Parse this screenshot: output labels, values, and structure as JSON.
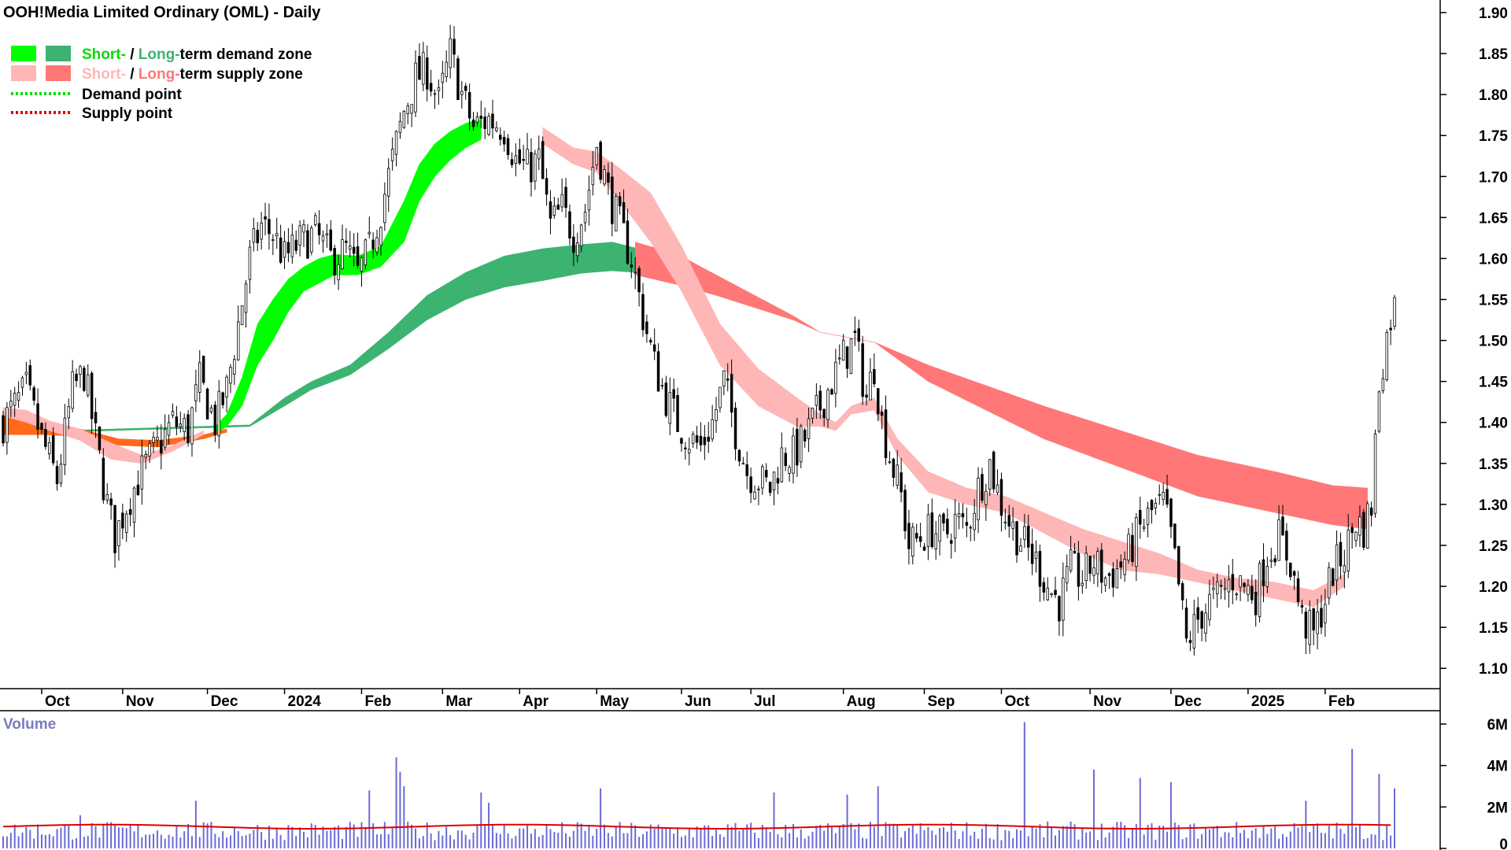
{
  "chart_data": {
    "type": "candlestick",
    "title": "OOH!Media Limited Ordinary (OML) - Daily",
    "legend": {
      "placement": "top-left",
      "demand_short": "Short-",
      "demand_sep": " / ",
      "demand_long": "Long-",
      "demand_rest": "term demand zone",
      "supply_short": "Short-",
      "supply_sep": " / ",
      "supply_long": "Long-",
      "supply_rest": "term supply zone",
      "demand_point": "Demand point",
      "supply_point": "Supply point"
    },
    "colors": {
      "short_demand": "#00ff00",
      "long_demand": "#3cb371",
      "short_supply": "#ffb6b6",
      "long_supply": "#ff7777",
      "cross": "#ff6a1a",
      "demand_point": "#00dd00",
      "supply_point": "#dd0000",
      "volume_bar": "#6b6bd6",
      "volume_avg": "#dd0000",
      "candle": "#000000"
    },
    "y_axis": {
      "side": "right",
      "min": 1.08,
      "max": 1.9,
      "ticks": [
        "1.90",
        "1.85",
        "1.80",
        "1.75",
        "1.70",
        "1.65",
        "1.60",
        "1.55",
        "1.50",
        "1.45",
        "1.40",
        "1.35",
        "1.30",
        "1.25",
        "1.20",
        "1.15",
        "1.10"
      ]
    },
    "x_axis": {
      "labels": [
        {
          "text": "Oct",
          "bar": 10
        },
        {
          "text": "Nov",
          "bar": 31
        },
        {
          "text": "Dec",
          "bar": 53
        },
        {
          "text": "2024",
          "bar": 73
        },
        {
          "text": "Feb",
          "bar": 93
        },
        {
          "text": "Mar",
          "bar": 114
        },
        {
          "text": "Apr",
          "bar": 134
        },
        {
          "text": "May",
          "bar": 154
        },
        {
          "text": "Jun",
          "bar": 176
        },
        {
          "text": "Jul",
          "bar": 194
        },
        {
          "text": "Aug",
          "bar": 218
        },
        {
          "text": "Sep",
          "bar": 239
        },
        {
          "text": "Oct",
          "bar": 259
        },
        {
          "text": "Nov",
          "bar": 282
        },
        {
          "text": "Dec",
          "bar": 303
        },
        {
          "text": "2025",
          "bar": 323
        },
        {
          "text": "Feb",
          "bar": 343
        }
      ],
      "total_bars": 362
    },
    "price_keypoints": [
      [
        0,
        1.4
      ],
      [
        3,
        1.42
      ],
      [
        6,
        1.44
      ],
      [
        10,
        1.38
      ],
      [
        14,
        1.33
      ],
      [
        18,
        1.44
      ],
      [
        21,
        1.46
      ],
      [
        24,
        1.38
      ],
      [
        27,
        1.3
      ],
      [
        29,
        1.26
      ],
      [
        32,
        1.3
      ],
      [
        36,
        1.34
      ],
      [
        40,
        1.37
      ],
      [
        44,
        1.4
      ],
      [
        48,
        1.39
      ],
      [
        51,
        1.45
      ],
      [
        55,
        1.4
      ],
      [
        58,
        1.44
      ],
      [
        61,
        1.52
      ],
      [
        64,
        1.6
      ],
      [
        67,
        1.64
      ],
      [
        70,
        1.63
      ],
      [
        73,
        1.6
      ],
      [
        77,
        1.62
      ],
      [
        81,
        1.63
      ],
      [
        85,
        1.6
      ],
      [
        89,
        1.61
      ],
      [
        92,
        1.58
      ],
      [
        95,
        1.61
      ],
      [
        98,
        1.66
      ],
      [
        101,
        1.72
      ],
      [
        104,
        1.78
      ],
      [
        107,
        1.82
      ],
      [
        110,
        1.83
      ],
      [
        113,
        1.79
      ],
      [
        116,
        1.85
      ],
      [
        119,
        1.8
      ],
      [
        122,
        1.76
      ],
      [
        126,
        1.77
      ],
      [
        130,
        1.76
      ],
      [
        133,
        1.72
      ],
      [
        136,
        1.71
      ],
      [
        139,
        1.72
      ],
      [
        142,
        1.64
      ],
      [
        145,
        1.66
      ],
      [
        148,
        1.63
      ],
      [
        151,
        1.66
      ],
      [
        154,
        1.74
      ],
      [
        157,
        1.68
      ],
      [
        160,
        1.64
      ],
      [
        163,
        1.6
      ],
      [
        166,
        1.53
      ],
      [
        169,
        1.47
      ],
      [
        172,
        1.43
      ],
      [
        175,
        1.4
      ],
      [
        178,
        1.38
      ],
      [
        181,
        1.37
      ],
      [
        184,
        1.4
      ],
      [
        187,
        1.45
      ],
      [
        190,
        1.39
      ],
      [
        193,
        1.34
      ],
      [
        196,
        1.33
      ],
      [
        199,
        1.32
      ],
      [
        202,
        1.36
      ],
      [
        205,
        1.36
      ],
      [
        208,
        1.38
      ],
      [
        212,
        1.42
      ],
      [
        215,
        1.45
      ],
      [
        218,
        1.48
      ],
      [
        221,
        1.5
      ],
      [
        224,
        1.43
      ],
      [
        226,
        1.47
      ],
      [
        228,
        1.4
      ],
      [
        230,
        1.36
      ],
      [
        233,
        1.31
      ],
      [
        235,
        1.25
      ],
      [
        238,
        1.26
      ],
      [
        241,
        1.27
      ],
      [
        244,
        1.26
      ],
      [
        247,
        1.28
      ],
      [
        250,
        1.27
      ],
      [
        253,
        1.32
      ],
      [
        256,
        1.35
      ],
      [
        259,
        1.3
      ],
      [
        262,
        1.27
      ],
      [
        265,
        1.25
      ],
      [
        268,
        1.23
      ],
      [
        271,
        1.2
      ],
      [
        274,
        1.18
      ],
      [
        277,
        1.22
      ],
      [
        280,
        1.21
      ],
      [
        283,
        1.23
      ],
      [
        286,
        1.21
      ],
      [
        289,
        1.22
      ],
      [
        292,
        1.24
      ],
      [
        295,
        1.27
      ],
      [
        298,
        1.29
      ],
      [
        301,
        1.3
      ],
      [
        303,
        1.26
      ],
      [
        305,
        1.2
      ],
      [
        307,
        1.13
      ],
      [
        310,
        1.16
      ],
      [
        313,
        1.18
      ],
      [
        316,
        1.19
      ],
      [
        319,
        1.21
      ],
      [
        322,
        1.2
      ],
      [
        325,
        1.19
      ],
      [
        328,
        1.24
      ],
      [
        331,
        1.26
      ],
      [
        334,
        1.23
      ],
      [
        337,
        1.16
      ],
      [
        340,
        1.14
      ],
      [
        342,
        1.17
      ],
      [
        345,
        1.22
      ],
      [
        348,
        1.24
      ],
      [
        351,
        1.28
      ],
      [
        353,
        1.27
      ],
      [
        355,
        1.3
      ],
      [
        357,
        1.45
      ],
      [
        360,
        1.53
      ],
      [
        361,
        1.54
      ]
    ],
    "zones_keypoints": {
      "long_demand": {
        "bars": [
          0,
          64,
          73,
          80,
          90,
          100,
          110,
          120,
          130,
          140,
          150,
          158,
          164
        ],
        "top": [
          1.388,
          1.397,
          1.43,
          1.45,
          1.47,
          1.51,
          1.555,
          1.583,
          1.603,
          1.612,
          1.617,
          1.62,
          1.613
        ],
        "bottom": [
          1.386,
          1.395,
          1.42,
          1.44,
          1.458,
          1.49,
          1.525,
          1.55,
          1.565,
          1.573,
          1.582,
          1.585,
          1.583
        ]
      },
      "short_demand": {
        "bars": [
          55,
          58,
          62,
          66,
          70,
          74,
          78,
          82,
          86,
          92,
          98,
          104,
          108,
          112,
          116,
          120,
          124
        ],
        "top": [
          1.395,
          1.41,
          1.455,
          1.52,
          1.55,
          1.575,
          1.59,
          1.6,
          1.605,
          1.603,
          1.615,
          1.67,
          1.715,
          1.74,
          1.755,
          1.765,
          1.77
        ],
        "bottom": [
          1.385,
          1.395,
          1.42,
          1.47,
          1.5,
          1.535,
          1.56,
          1.57,
          1.58,
          1.58,
          1.59,
          1.62,
          1.67,
          1.7,
          1.72,
          1.735,
          1.745
        ]
      },
      "long_supply": {
        "bars": [
          164,
          175,
          185,
          195,
          205,
          212,
          220,
          226,
          240,
          255,
          270,
          290,
          310,
          330,
          345,
          354
        ],
        "top": [
          1.62,
          1.605,
          1.58,
          1.555,
          1.53,
          1.51,
          1.503,
          1.498,
          1.47,
          1.445,
          1.42,
          1.39,
          1.36,
          1.34,
          1.323,
          1.32
        ],
        "bottom": [
          1.58,
          1.568,
          1.555,
          1.54,
          1.525,
          1.51,
          1.503,
          1.498,
          1.45,
          1.415,
          1.38,
          1.345,
          1.31,
          1.29,
          1.275,
          1.27
        ]
      },
      "short_supply": {
        "bars": [
          140,
          148,
          154,
          160,
          168,
          176,
          186,
          196,
          206,
          212,
          216,
          220,
          226,
          232,
          240,
          250,
          260,
          270,
          280,
          290,
          300,
          310,
          320,
          330,
          340,
          348
        ],
        "top": [
          1.76,
          1.735,
          1.73,
          1.71,
          1.68,
          1.615,
          1.52,
          1.465,
          1.43,
          1.41,
          1.4,
          1.42,
          1.43,
          1.38,
          1.34,
          1.32,
          1.31,
          1.29,
          1.27,
          1.255,
          1.24,
          1.22,
          1.21,
          1.205,
          1.195,
          1.215
        ],
        "bottom": [
          1.74,
          1.715,
          1.705,
          1.67,
          1.62,
          1.56,
          1.47,
          1.42,
          1.395,
          1.395,
          1.39,
          1.41,
          1.415,
          1.36,
          1.315,
          1.3,
          1.29,
          1.265,
          1.24,
          1.22,
          1.215,
          1.205,
          1.195,
          1.185,
          1.175,
          1.2
        ]
      }
    },
    "volume": {
      "label": "Volume",
      "ticks": [
        "6M",
        "4M",
        "2M",
        "0"
      ],
      "max": 6000000,
      "average_level": 1050000,
      "spikes": [
        [
          20,
          1.6
        ],
        [
          50,
          2.3
        ],
        [
          95,
          2.8
        ],
        [
          102,
          4.4
        ],
        [
          103,
          3.7
        ],
        [
          104,
          3.0
        ],
        [
          124,
          2.7
        ],
        [
          126,
          2.2
        ],
        [
          155,
          2.9
        ],
        [
          200,
          2.7
        ],
        [
          219,
          2.6
        ],
        [
          227,
          3.0
        ],
        [
          265,
          6.1
        ],
        [
          283,
          3.8
        ],
        [
          295,
          3.4
        ],
        [
          303,
          3.2
        ],
        [
          338,
          2.3
        ],
        [
          350,
          4.8
        ],
        [
          357,
          3.6
        ],
        [
          361,
          2.9
        ]
      ]
    }
  }
}
